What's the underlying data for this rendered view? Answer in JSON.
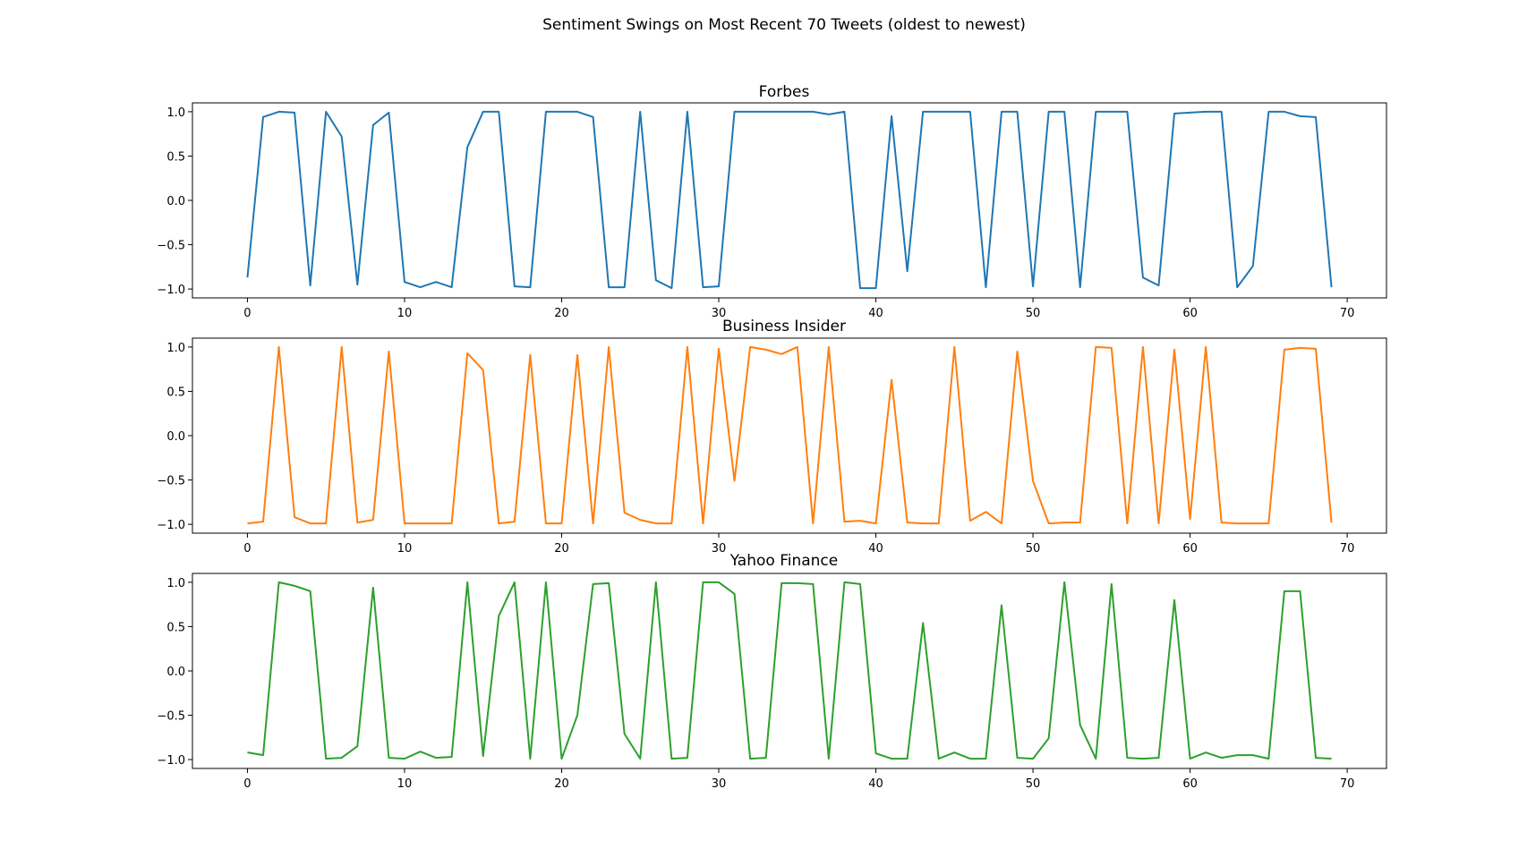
{
  "figure": {
    "suptitle": "Sentiment Swings on Most Recent 70 Tweets (oldest to newest)"
  },
  "chart_data": [
    {
      "type": "line",
      "title": "Forbes",
      "color": "#1f77b4",
      "xlim": [
        -3.5,
        72.5
      ],
      "ylim": [
        -1.1,
        1.1
      ],
      "xticks": [
        0,
        10,
        20,
        30,
        40,
        50,
        60,
        70
      ],
      "yticks": [
        -1.0,
        -0.5,
        0.0,
        0.5,
        1.0
      ],
      "xtick_labels": [
        "0",
        "10",
        "20",
        "30",
        "40",
        "50",
        "60",
        "70"
      ],
      "ytick_labels": [
        "−1.0",
        "−0.5",
        "0.0",
        "0.5",
        "1.0"
      ],
      "grid": false,
      "series": [
        {
          "x": [
            0,
            1,
            2,
            3,
            4,
            5,
            6,
            7,
            8,
            9,
            10,
            11,
            12,
            13,
            14,
            15,
            16,
            17,
            18,
            19,
            20,
            21,
            22,
            23,
            24,
            25,
            26,
            27,
            28,
            29,
            30,
            31,
            32,
            33,
            34,
            35,
            36,
            37,
            38,
            39,
            40,
            41,
            42,
            43,
            44,
            45,
            46,
            47,
            48,
            49,
            50,
            51,
            52,
            53,
            54,
            55,
            56,
            57,
            58,
            59,
            60,
            61,
            62,
            63,
            64,
            65,
            66,
            67,
            68,
            69
          ],
          "values": [
            -0.87,
            0.94,
            1.0,
            0.99,
            -0.96,
            1.0,
            0.72,
            -0.95,
            0.85,
            0.99,
            -0.92,
            -0.98,
            -0.92,
            -0.98,
            0.6,
            1.0,
            1.0,
            -0.97,
            -0.98,
            1.0,
            1.0,
            1.0,
            0.94,
            -0.98,
            -0.98,
            1.0,
            -0.9,
            -0.99,
            1.0,
            -0.98,
            -0.97,
            1.0,
            1.0,
            1.0,
            1.0,
            1.0,
            1.0,
            0.97,
            1.0,
            -0.99,
            -0.99,
            0.95,
            -0.8,
            1.0,
            1.0,
            1.0,
            1.0,
            -0.98,
            1.0,
            1.0,
            -0.97,
            1.0,
            1.0,
            -0.98,
            1.0,
            1.0,
            1.0,
            -0.87,
            -0.96,
            0.98,
            0.99,
            1.0,
            1.0,
            -0.98,
            -0.74,
            1.0,
            1.0,
            0.95,
            0.94,
            -0.98
          ]
        }
      ]
    },
    {
      "type": "line",
      "title": "Business Insider",
      "color": "#ff7f0e",
      "xlim": [
        -3.5,
        72.5
      ],
      "ylim": [
        -1.1,
        1.1
      ],
      "xticks": [
        0,
        10,
        20,
        30,
        40,
        50,
        60,
        70
      ],
      "yticks": [
        -1.0,
        -0.5,
        0.0,
        0.5,
        1.0
      ],
      "xtick_labels": [
        "0",
        "10",
        "20",
        "30",
        "40",
        "50",
        "60",
        "70"
      ],
      "ytick_labels": [
        "−1.0",
        "−0.5",
        "0.0",
        "0.5",
        "1.0"
      ],
      "grid": false,
      "series": [
        {
          "x": [
            0,
            1,
            2,
            3,
            4,
            5,
            6,
            7,
            8,
            9,
            10,
            11,
            12,
            13,
            14,
            15,
            16,
            17,
            18,
            19,
            20,
            21,
            22,
            23,
            24,
            25,
            26,
            27,
            28,
            29,
            30,
            31,
            32,
            33,
            34,
            35,
            36,
            37,
            38,
            39,
            40,
            41,
            42,
            43,
            44,
            45,
            46,
            47,
            48,
            49,
            50,
            51,
            52,
            53,
            54,
            55,
            56,
            57,
            58,
            59,
            60,
            61,
            62,
            63,
            64,
            65,
            66,
            67,
            68,
            69
          ],
          "values": [
            -0.99,
            -0.97,
            1.0,
            -0.92,
            -0.99,
            -0.99,
            1.0,
            -0.98,
            -0.95,
            0.95,
            -0.99,
            -0.99,
            -0.99,
            -0.99,
            0.93,
            0.74,
            -0.99,
            -0.97,
            0.91,
            -0.99,
            -0.99,
            0.91,
            -0.99,
            1.0,
            -0.87,
            -0.95,
            -0.99,
            -0.99,
            1.0,
            -0.99,
            0.98,
            -0.51,
            1.0,
            0.97,
            0.92,
            1.0,
            -0.99,
            1.0,
            -0.97,
            -0.96,
            -0.99,
            0.63,
            -0.98,
            -0.99,
            -0.99,
            1.0,
            -0.96,
            -0.86,
            -0.99,
            0.95,
            -0.51,
            -0.99,
            -0.98,
            -0.98,
            1.0,
            0.99,
            -0.99,
            1.0,
            -0.99,
            0.97,
            -0.94,
            1.0,
            -0.98,
            -0.99,
            -0.99,
            -0.99,
            0.97,
            0.99,
            0.98,
            -0.98
          ]
        }
      ]
    },
    {
      "type": "line",
      "title": "Yahoo Finance",
      "color": "#2ca02c",
      "xlim": [
        -3.5,
        72.5
      ],
      "ylim": [
        -1.1,
        1.1
      ],
      "xticks": [
        0,
        10,
        20,
        30,
        40,
        50,
        60,
        70
      ],
      "yticks": [
        -1.0,
        -0.5,
        0.0,
        0.5,
        1.0
      ],
      "xtick_labels": [
        "0",
        "10",
        "20",
        "30",
        "40",
        "50",
        "60",
        "70"
      ],
      "ytick_labels": [
        "−1.0",
        "−0.5",
        "0.0",
        "0.5",
        "1.0"
      ],
      "grid": false,
      "series": [
        {
          "x": [
            0,
            1,
            2,
            3,
            4,
            5,
            6,
            7,
            8,
            9,
            10,
            11,
            12,
            13,
            14,
            15,
            16,
            17,
            18,
            19,
            20,
            21,
            22,
            23,
            24,
            25,
            26,
            27,
            28,
            29,
            30,
            31,
            32,
            33,
            34,
            35,
            36,
            37,
            38,
            39,
            40,
            41,
            42,
            43,
            44,
            45,
            46,
            47,
            48,
            49,
            50,
            51,
            52,
            53,
            54,
            55,
            56,
            57,
            58,
            59,
            60,
            61,
            62,
            63,
            64,
            65,
            66,
            67,
            68,
            69
          ],
          "values": [
            -0.92,
            -0.95,
            1.0,
            0.96,
            0.9,
            -0.99,
            -0.98,
            -0.85,
            0.94,
            -0.98,
            -0.99,
            -0.91,
            -0.98,
            -0.97,
            1.0,
            -0.96,
            0.62,
            1.0,
            -0.99,
            1.0,
            -0.99,
            -0.5,
            0.98,
            0.99,
            -0.71,
            -0.99,
            1.0,
            -0.99,
            -0.98,
            1.0,
            1.0,
            0.87,
            -0.99,
            -0.98,
            0.99,
            0.99,
            0.98,
            -0.99,
            1.0,
            0.98,
            -0.93,
            -0.99,
            -0.99,
            0.54,
            -0.99,
            -0.92,
            -0.99,
            -0.99,
            0.74,
            -0.98,
            -0.99,
            -0.76,
            1.0,
            -0.61,
            -0.99,
            0.98,
            -0.98,
            -0.99,
            -0.98,
            0.8,
            -0.99,
            -0.92,
            -0.98,
            -0.95,
            -0.95,
            -0.99,
            0.9,
            0.9,
            -0.98,
            -0.99
          ]
        }
      ]
    }
  ]
}
